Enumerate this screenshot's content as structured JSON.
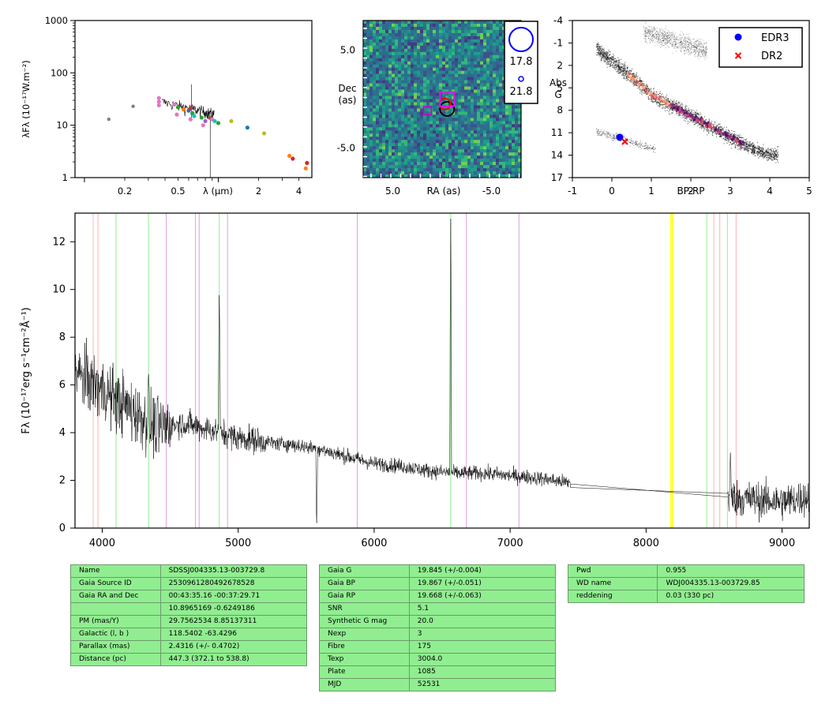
{
  "chart_data": [
    {
      "type": "scatter",
      "title": "",
      "xlabel": "λ (μm)",
      "ylabel": "λFλ (10⁻¹⁷W.m⁻²)",
      "xscale": "log",
      "yscale": "log",
      "xlim": [
        0.085,
        5.0
      ],
      "ylim": [
        1,
        1000
      ],
      "xticks": [
        "0.2",
        "0.5",
        "2",
        "4"
      ],
      "xtick_values": [
        0.2,
        0.5,
        2,
        4
      ],
      "yticks": [
        "1",
        "10",
        "100",
        "1000"
      ],
      "ytick_values": [
        1,
        10,
        100,
        1000
      ],
      "points": [
        {
          "x": 0.152,
          "y": 13,
          "color": "#808080"
        },
        {
          "x": 0.231,
          "y": 23,
          "color": "#808080"
        },
        {
          "x": 0.36,
          "y": 33,
          "color": "#e377c2"
        },
        {
          "x": 0.36,
          "y": 28,
          "color": "#e377c2"
        },
        {
          "x": 0.36,
          "y": 24,
          "color": "#e377c2"
        },
        {
          "x": 0.47,
          "y": 25,
          "color": "#e377c2"
        },
        {
          "x": 0.49,
          "y": 16,
          "color": "#e377c2"
        },
        {
          "x": 0.5,
          "y": 22,
          "color": "#2ca02c"
        },
        {
          "x": 0.55,
          "y": 20,
          "color": "#ff7f0e"
        },
        {
          "x": 0.6,
          "y": 19,
          "color": "#1f77b4"
        },
        {
          "x": 0.62,
          "y": 21,
          "color": "#d62728"
        },
        {
          "x": 0.62,
          "y": 13,
          "color": "#e377c2"
        },
        {
          "x": 0.64,
          "y": 17,
          "color": "#2ca02c"
        },
        {
          "x": 0.66,
          "y": 15,
          "color": "#17becf"
        },
        {
          "x": 0.75,
          "y": 14,
          "color": "#2ca02c"
        },
        {
          "x": 0.77,
          "y": 10,
          "color": "#e377c2"
        },
        {
          "x": 0.8,
          "y": 12,
          "color": "#9467bd"
        },
        {
          "x": 0.86,
          "y": 14,
          "color": "#8c564b"
        },
        {
          "x": 0.9,
          "y": 13,
          "color": "#e377c2"
        },
        {
          "x": 0.94,
          "y": 12,
          "color": "#17becf"
        },
        {
          "x": 1.0,
          "y": 11,
          "color": "#2ca02c"
        },
        {
          "x": 1.25,
          "y": 12,
          "color": "#bcbd22"
        },
        {
          "x": 1.65,
          "y": 9,
          "color": "#1f77b4"
        },
        {
          "x": 2.2,
          "y": 7,
          "color": "#bcbd22"
        },
        {
          "x": 3.4,
          "y": 2.6,
          "color": "#ff7f0e"
        },
        {
          "x": 3.6,
          "y": 2.3,
          "color": "#d62728"
        },
        {
          "x": 4.5,
          "y": 1.5,
          "color": "#ff7f0e"
        },
        {
          "x": 4.6,
          "y": 1.9,
          "color": "#d62728"
        }
      ]
    },
    {
      "type": "heatmap",
      "title": "",
      "xlabel": "RA (as)",
      "ylabel": "Dec\n(as)",
      "xlim": [
        8.0,
        -8.0
      ],
      "ylim": [
        -8.0,
        8.0
      ],
      "xticks": [
        "5.0",
        "-5.0"
      ],
      "xtick_values": [
        5.0,
        -5.0
      ],
      "yticks": [
        "5.0",
        "-5.0"
      ],
      "ytick_values": [
        5.0,
        -5.0
      ],
      "legend": {
        "placement": "top-right",
        "entries": [
          "17.8",
          "21.8"
        ]
      },
      "markers": [
        {
          "shape": "circle",
          "x": -0.5,
          "y": -1.0,
          "color": "#000000"
        },
        {
          "shape": "circle",
          "x": -0.3,
          "y": -0.5,
          "color": "#ff0000"
        },
        {
          "shape": "square",
          "x": -0.5,
          "y": 0.0,
          "color": "#ff00ff"
        },
        {
          "shape": "square",
          "x": 1.5,
          "y": -1.2,
          "color": "#cc00cc"
        }
      ]
    },
    {
      "type": "scatter",
      "title": "",
      "xlabel": "BP-RP",
      "ylabel": "Abs\nG",
      "xlim": [
        -1,
        5
      ],
      "ylim": [
        17,
        -4
      ],
      "xticks": [
        "-1",
        "0",
        "1",
        "2",
        "3",
        "4",
        "5"
      ],
      "xtick_values": [
        -1,
        0,
        1,
        2,
        3,
        4,
        5
      ],
      "yticks": [
        "-4",
        "-1",
        "2",
        "5",
        "8",
        "11",
        "14",
        "17"
      ],
      "ytick_values": [
        -4,
        -1,
        2,
        5,
        8,
        11,
        14,
        17
      ],
      "legend": {
        "placement": "top-right"
      },
      "series": [
        {
          "name": "EDR3",
          "marker": "circle",
          "color": "#0000ff",
          "points": [
            [
              0.2,
              11.6
            ]
          ]
        },
        {
          "name": "DR2",
          "marker": "x",
          "color": "#ff0000",
          "points": [
            [
              0.33,
              12.2
            ]
          ]
        }
      ]
    },
    {
      "type": "line",
      "title": "",
      "xlabel": "",
      "ylabel": "Fλ (10⁻¹⁷erg s⁻¹cm⁻²Å⁻¹)",
      "xlim": [
        3800,
        9200
      ],
      "ylim": [
        0,
        13.2
      ],
      "xticks": [
        "4000",
        "5000",
        "6000",
        "7000",
        "8000",
        "9000"
      ],
      "xtick_values": [
        4000,
        5000,
        6000,
        7000,
        8000,
        9000
      ],
      "yticks": [
        "0",
        "2",
        "4",
        "6",
        "8",
        "10",
        "12"
      ],
      "ytick_values": [
        0,
        2,
        4,
        6,
        8,
        10,
        12
      ],
      "grid": false,
      "vlines": [
        {
          "x": 3934,
          "color": "#ffb0b0"
        },
        {
          "x": 3969,
          "color": "#ffb0b0"
        },
        {
          "x": 4102,
          "color": "#90ee90"
        },
        {
          "x": 4341,
          "color": "#90ee90"
        },
        {
          "x": 4471,
          "color": "#dda0dd"
        },
        {
          "x": 4686,
          "color": "#dda0dd"
        },
        {
          "x": 4713,
          "color": "#dda0dd"
        },
        {
          "x": 4861,
          "color": "#90ee90"
        },
        {
          "x": 4922,
          "color": "#dda0dd"
        },
        {
          "x": 5876,
          "color": "#dda0dd"
        },
        {
          "x": 6563,
          "color": "#90ee90"
        },
        {
          "x": 6678,
          "color": "#dda0dd"
        },
        {
          "x": 7065,
          "color": "#dda0dd"
        },
        {
          "x": 8183,
          "color": "#ffff00"
        },
        {
          "x": 8195,
          "color": "#ffff00"
        },
        {
          "x": 8446,
          "color": "#90ee90"
        },
        {
          "x": 8498,
          "color": "#ffb0b0"
        },
        {
          "x": 8542,
          "color": "#ffb0b0"
        },
        {
          "x": 8598,
          "color": "#90ee90"
        },
        {
          "x": 8662,
          "color": "#ffb0b0"
        }
      ],
      "series_trend": [
        [
          3800,
          6.5
        ],
        [
          4000,
          5.8
        ],
        [
          4200,
          5.0
        ],
        [
          4400,
          4.2
        ],
        [
          4600,
          4.4
        ],
        [
          4800,
          4.1
        ],
        [
          5000,
          3.8
        ],
        [
          5200,
          3.6
        ],
        [
          5400,
          3.5
        ],
        [
          5600,
          3.3
        ],
        [
          5800,
          3.0
        ],
        [
          6000,
          2.7
        ],
        [
          6200,
          2.6
        ],
        [
          6400,
          2.4
        ],
        [
          6600,
          2.3
        ],
        [
          6800,
          2.3
        ],
        [
          7000,
          2.2
        ],
        [
          7200,
          2.1
        ],
        [
          7440,
          1.9
        ],
        [
          8600,
          1.3
        ],
        [
          8800,
          1.2
        ],
        [
          9000,
          1.1
        ],
        [
          9200,
          1.3
        ]
      ],
      "features": [
        {
          "x": 4341,
          "y": 6.5
        },
        {
          "x": 4861,
          "y": 10.2
        },
        {
          "x": 5577,
          "y": 0.0
        },
        {
          "x": 6563,
          "y": 13.2
        },
        {
          "x": 8620,
          "y": 3.2
        }
      ]
    }
  ],
  "tables": {
    "table1": [
      [
        "Name",
        "SDSSJ004335.13-003729.8"
      ],
      [
        "Gaia Source ID",
        "2530961280492678528"
      ],
      [
        "Gaia RA and Dec",
        "00:43:35.16    -00:37:29.71"
      ],
      [
        "",
        "10.8965169    -0.6249186"
      ],
      [
        "PM (mas/Y)",
        "29.7562534    8.85137311"
      ],
      [
        "Galactic (l, b )",
        "118.5402    -63.4296"
      ],
      [
        "Parallax (mas)",
        "2.4316 (+/- 0.4702)"
      ],
      [
        "Distance (pc)",
        "447.3 (372.1 to 538.8)"
      ]
    ],
    "table2": [
      [
        "Gaia G",
        "19.845 (+/-0.004)"
      ],
      [
        "Gaia BP",
        "19.867 (+/-0.051)"
      ],
      [
        "Gaia RP",
        "19.668 (+/-0.063)"
      ],
      [
        "SNR",
        "5.1"
      ],
      [
        "Synthetic G mag",
        "20.0"
      ],
      [
        "Nexp",
        "3"
      ],
      [
        "Fibre",
        "175"
      ],
      [
        "Texp",
        "3004.0"
      ],
      [
        "Plate",
        "1085"
      ],
      [
        "MJD",
        "52531"
      ]
    ],
    "table3": [
      [
        "Pwd",
        "0.955"
      ],
      [
        "WD name",
        "WDJ004335.13-003729.85"
      ],
      [
        "reddening",
        "0.03 (330 pc)"
      ]
    ]
  },
  "colors": {
    "table_bg": "#90ee90",
    "edr3": "#0000ff",
    "dr2": "#ff0000"
  }
}
